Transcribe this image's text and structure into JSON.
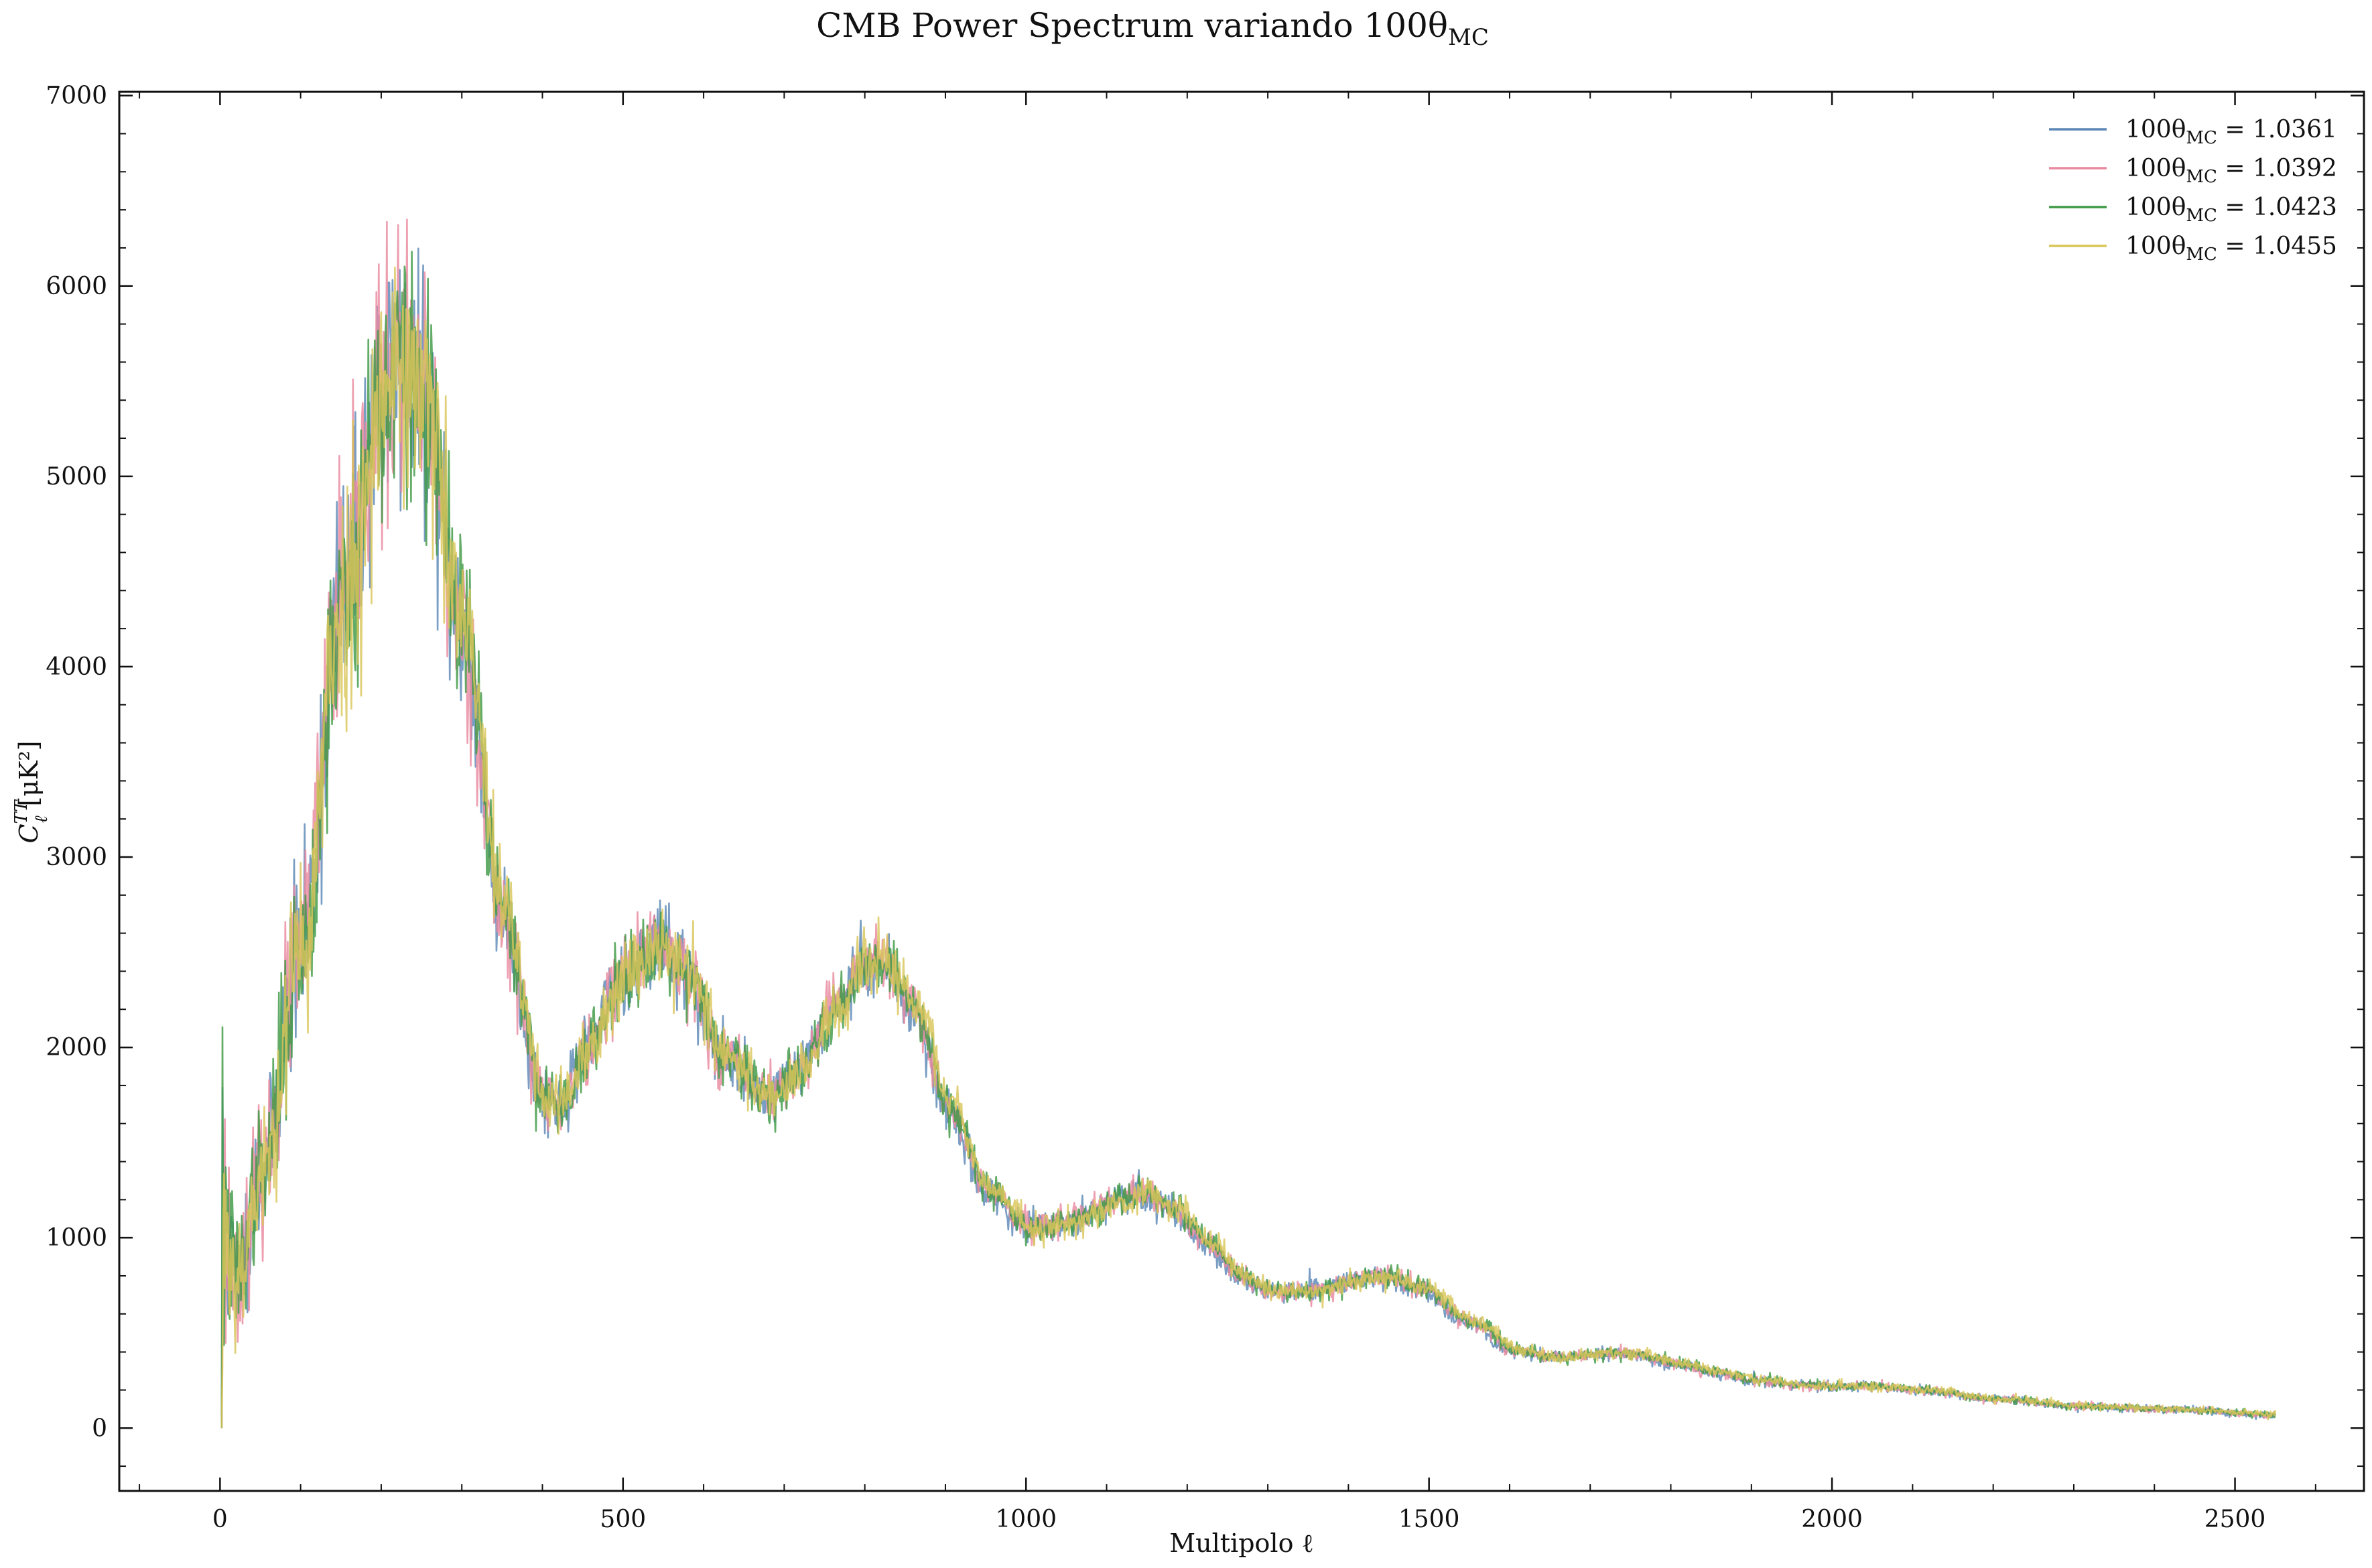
{
  "chart_data": {
    "type": "line",
    "title": "CMB Power Spectrum variando 100θ",
    "title_sub": "MC",
    "xlabel": "Multipolo ℓ",
    "ylabel_main": "C",
    "ylabel_sup": "TT",
    "ylabel_sub": "ℓ",
    "ylabel_units": "[μK²]",
    "xlim": [
      -125,
      2660
    ],
    "ylim": [
      -330,
      7020
    ],
    "x_ticks": [
      0,
      500,
      1000,
      1500,
      2000,
      2500
    ],
    "y_ticks": [
      0,
      1000,
      2000,
      3000,
      4000,
      5000,
      6000,
      7000
    ],
    "x_tick_labels": [
      "0",
      "500",
      "1000",
      "1500",
      "2000",
      "2500"
    ],
    "y_tick_labels": [
      "0",
      "1000",
      "2000",
      "3000",
      "4000",
      "5000",
      "6000",
      "7000"
    ],
    "grid": false,
    "legend_position": "top-right",
    "legend_prefix": "100θ",
    "legend_sub": "MC",
    "x_max": 2550,
    "series": [
      {
        "name": "1.0361",
        "color": "#5b87b6",
        "shift": 1.0,
        "noise_seed": 11
      },
      {
        "name": "1.0392",
        "color": "#e98aa0",
        "shift": 0.997,
        "noise_seed": 23
      },
      {
        "name": "1.0423",
        "color": "#3f9a45",
        "shift": 0.994,
        "noise_seed": 37
      },
      {
        "name": "1.0455",
        "color": "#d9c65a",
        "shift": 0.991,
        "noise_seed": 53
      }
    ],
    "spectrum_shape": {
      "x": [
        2,
        20,
        50,
        100,
        150,
        200,
        220,
        250,
        300,
        350,
        400,
        420,
        450,
        500,
        540,
        580,
        620,
        680,
        720,
        760,
        800,
        820,
        860,
        900,
        950,
        1000,
        1050,
        1100,
        1140,
        1180,
        1220,
        1260,
        1300,
        1350,
        1400,
        1440,
        1480,
        1550,
        1600,
        1650,
        1700,
        1750,
        1800,
        1850,
        1900,
        1950,
        2000,
        2050,
        2100,
        2200,
        2300,
        2400,
        2550
      ],
      "y": [
        1100,
        800,
        1300,
        2500,
        4300,
        5400,
        5600,
        5400,
        4200,
        2700,
        1750,
        1700,
        1950,
        2400,
        2550,
        2400,
        1950,
        1750,
        1900,
        2200,
        2450,
        2450,
        2200,
        1700,
        1250,
        1050,
        1080,
        1180,
        1230,
        1150,
        980,
        800,
        720,
        720,
        770,
        800,
        740,
        550,
        410,
        370,
        390,
        390,
        340,
        290,
        250,
        225,
        220,
        220,
        200,
        150,
        115,
        100,
        70
      ]
    }
  }
}
